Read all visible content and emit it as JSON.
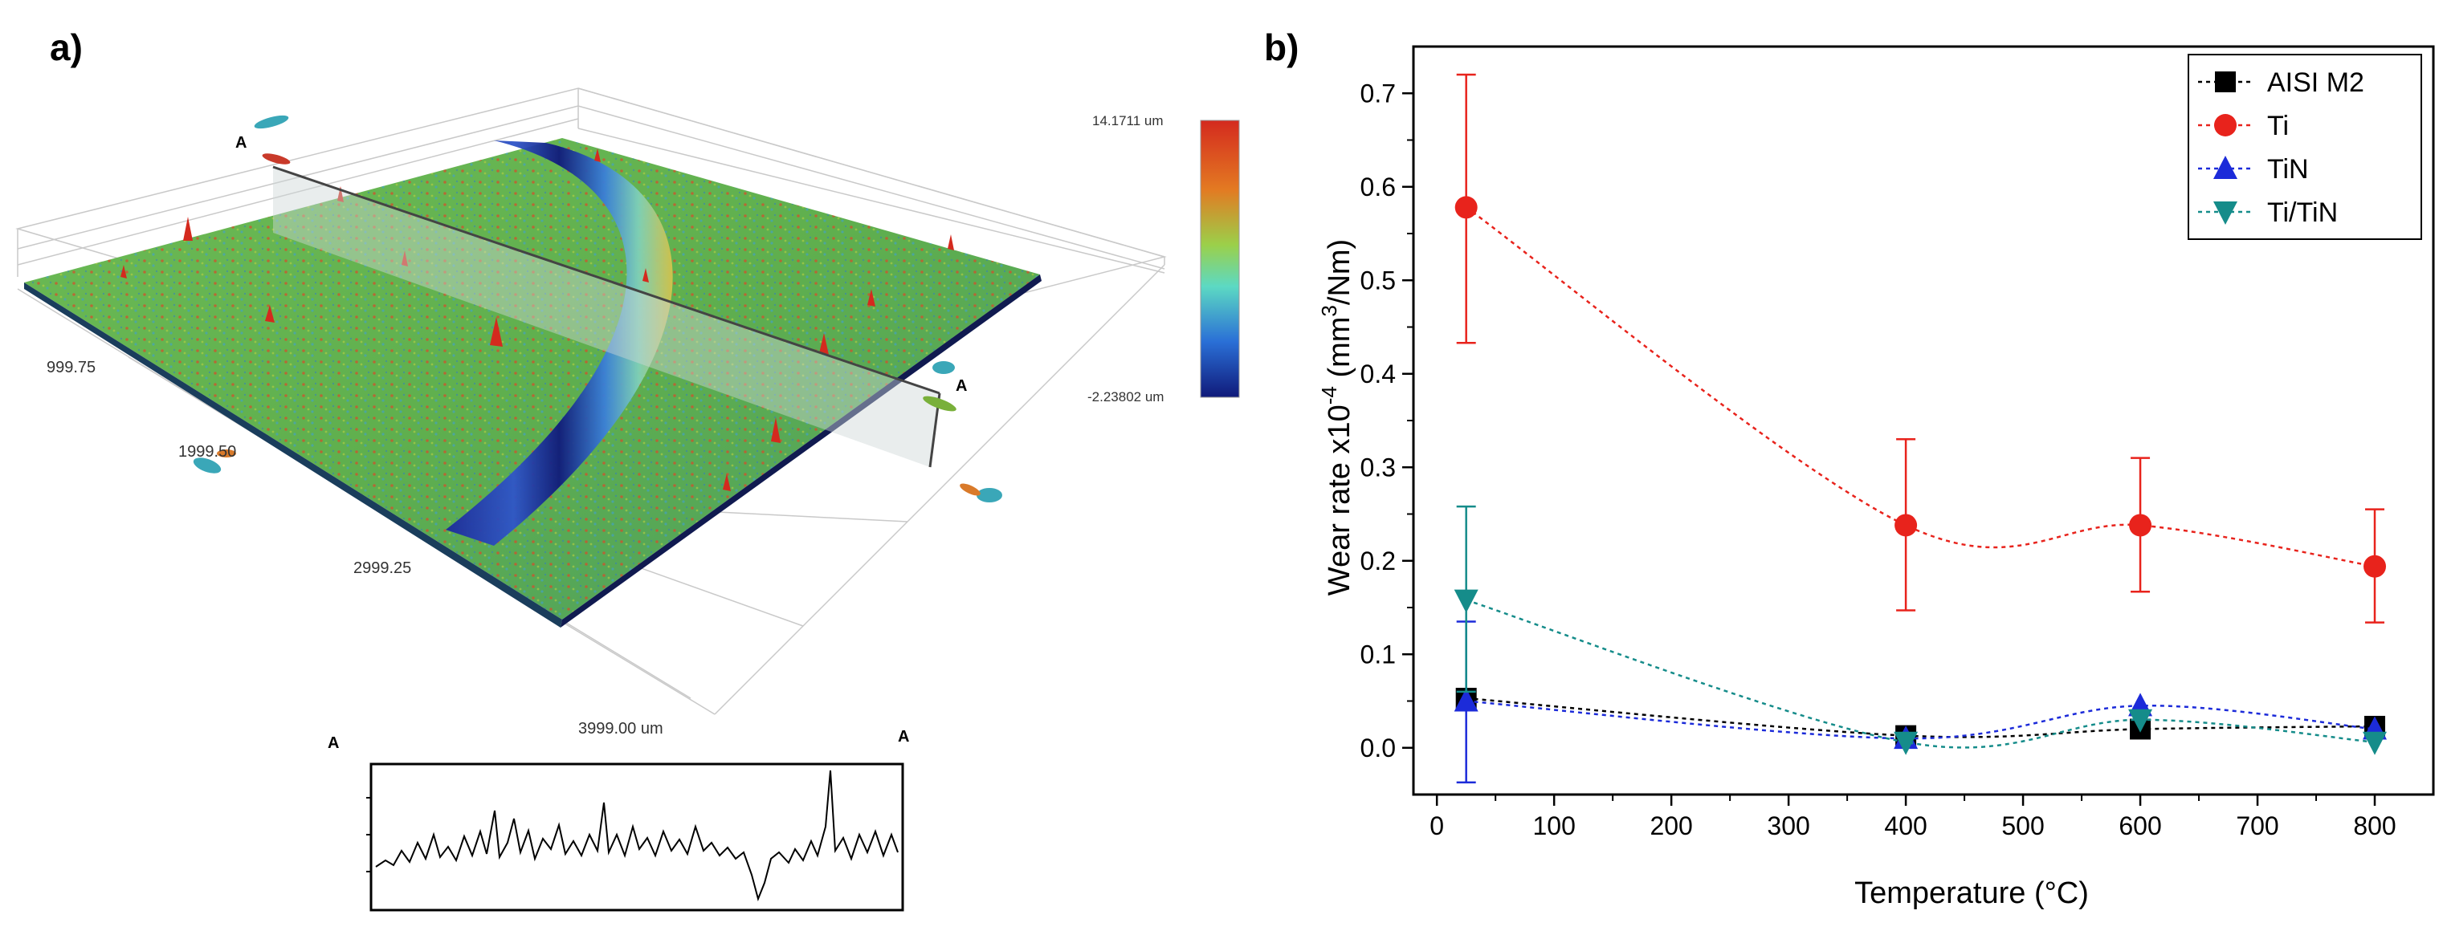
{
  "panel_labels": {
    "a": "a)",
    "b": "b)"
  },
  "surface_map": {
    "colorbar": {
      "max": "14.1711 um",
      "min": "-2.23802 um"
    },
    "axis_ticks": [
      "999.75",
      "1999.50",
      "2999.25",
      "3999.00 um"
    ],
    "section_marker": "A",
    "profile_labels": {
      "left": "A",
      "right": "A"
    },
    "colors": {
      "low": "#1f2a8c",
      "mid": "#5cc15a",
      "high": "#d42a1e"
    }
  },
  "chart_data": {
    "type": "scatter",
    "title": "",
    "xlabel": "Temperature (°C)",
    "ylabel": "Wear rate x10",
    "ylabel_sup1": "-4",
    "ylabel_mid": " (mm",
    "ylabel_sup2": "3",
    "ylabel_end": "/Nm)",
    "xlim": [
      -20,
      850
    ],
    "ylim": [
      -0.05,
      0.75
    ],
    "xticks": [
      0,
      100,
      200,
      300,
      400,
      500,
      600,
      700,
      800
    ],
    "yticks": [
      0.0,
      0.1,
      0.2,
      0.3,
      0.4,
      0.5,
      0.6,
      0.7
    ],
    "x": [
      25,
      400,
      600,
      800
    ],
    "legend_position": "top-right",
    "series": [
      {
        "name": "AISI M2",
        "marker": "square",
        "color": "#000000",
        "values": [
          0.053,
          0.013,
          0.02,
          0.023
        ],
        "err_low": [
          0.053,
          0.013,
          0.022,
          0.023
        ],
        "err_high": [
          0.053,
          0.013,
          0.035,
          0.032
        ]
      },
      {
        "name": "Ti",
        "marker": "circle",
        "color": "#e8231c",
        "values": [
          0.578,
          0.238,
          0.238,
          0.194
        ],
        "err_low": [
          0.433,
          0.147,
          0.167,
          0.134
        ],
        "err_high": [
          0.72,
          0.33,
          0.31,
          0.255
        ]
      },
      {
        "name": "TiN",
        "marker": "triangle-up",
        "color": "#1c2bd9",
        "values": [
          0.05,
          0.01,
          0.045,
          0.02
        ],
        "err_low": [
          -0.037,
          0.01,
          0.045,
          0.02
        ],
        "err_high": [
          0.135,
          0.01,
          0.045,
          0.02
        ]
      },
      {
        "name": "Ti/TiN",
        "marker": "triangle-down",
        "color": "#158c8a",
        "values": [
          0.158,
          0.006,
          0.03,
          0.006
        ],
        "err_low": [
          0.06,
          0.006,
          0.03,
          0.006
        ],
        "err_high": [
          0.258,
          0.006,
          0.03,
          0.006
        ]
      }
    ]
  }
}
